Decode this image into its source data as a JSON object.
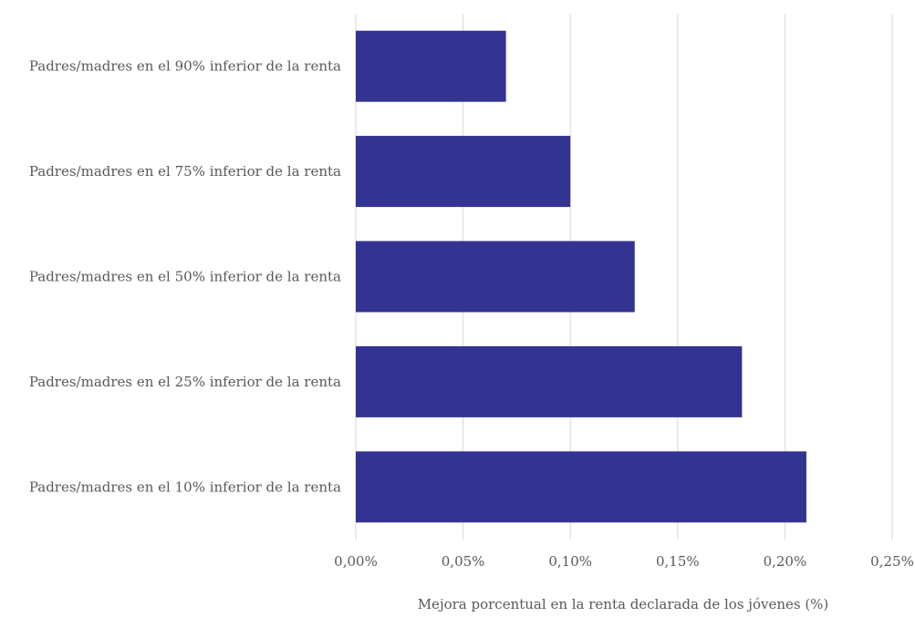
{
  "chart_data": {
    "type": "bar",
    "orientation": "horizontal",
    "categories": [
      "Padres/madres en el 90% inferior de la renta",
      "Padres/madres en el 75% inferior de la renta",
      "Padres/madres en el 50% inferior de la renta",
      "Padres/madres en el 25% inferior de la renta",
      "Padres/madres en el 10% inferior de la renta"
    ],
    "values": [
      0.0007,
      0.001,
      0.0013,
      0.0018,
      0.0021
    ],
    "xlabel": "Mejora porcentual en la renta declarada de los jóvenes (%)",
    "ylabel": "",
    "title": "",
    "xlim": [
      0,
      0.0025
    ],
    "x_ticks": [
      0,
      0.0005,
      0.001,
      0.0015,
      0.002,
      0.0025
    ],
    "x_tick_labels": [
      "0,00%",
      "0,05%",
      "0,10%",
      "0,15%",
      "0,20%",
      "0,25%"
    ],
    "grid": "vertical",
    "bar_color": "#333391"
  }
}
